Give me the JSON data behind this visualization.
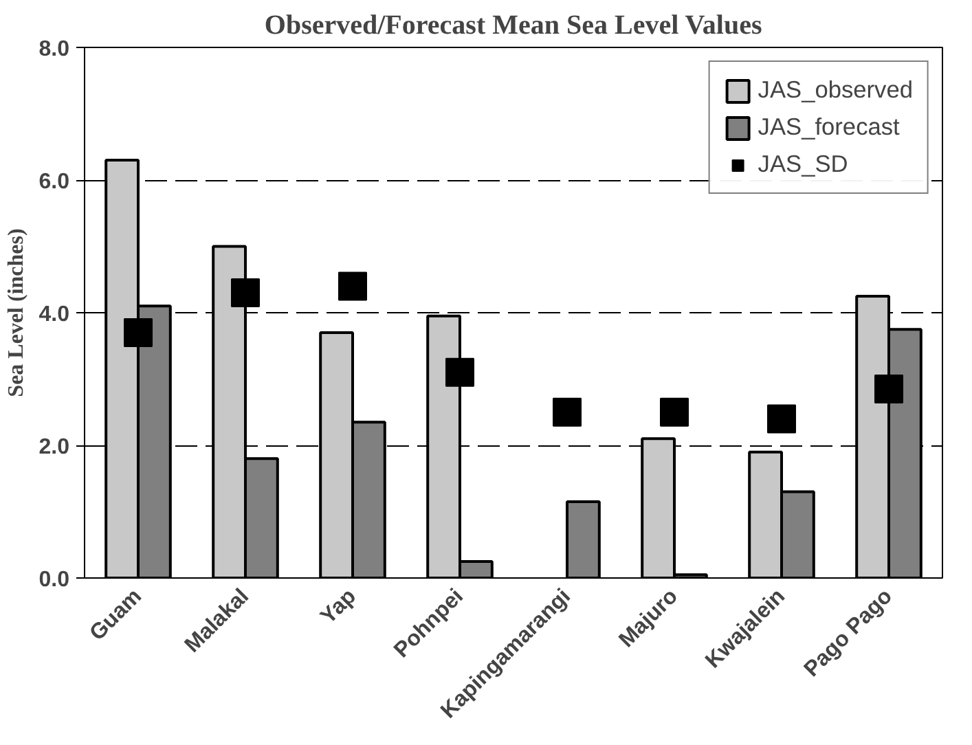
{
  "chart_data": {
    "type": "bar",
    "title": "Observed/Forecast Mean Sea Level Values",
    "ylabel": "Sea Level (inches)",
    "categories": [
      "Guam",
      "Malakal",
      "Yap",
      "Pohnpei",
      "Kapingamarangi",
      "Majuro",
      "Kwajalein",
      "Pago Pago"
    ],
    "series": [
      {
        "name": "JAS_observed",
        "color": "#c8c8c8",
        "values": [
          6.3,
          5.0,
          3.7,
          3.95,
          null,
          2.1,
          1.9,
          4.25
        ]
      },
      {
        "name": "JAS_forecast",
        "color": "#808080",
        "values": [
          4.1,
          1.8,
          2.35,
          0.25,
          1.15,
          0.05,
          1.3,
          3.75
        ]
      },
      {
        "name": "JAS_SD",
        "type": "scatter",
        "marker": "square",
        "color": "#000000",
        "values": [
          3.7,
          4.3,
          4.4,
          3.1,
          2.5,
          2.5,
          2.4,
          2.85
        ]
      }
    ],
    "ylim": [
      0,
      8
    ],
    "yticks": [
      {
        "value": 0,
        "label": "0.0"
      },
      {
        "value": 2,
        "label": "2.0"
      },
      {
        "value": 4,
        "label": "4.0"
      },
      {
        "value": 6,
        "label": "6.0"
      },
      {
        "value": 8,
        "label": "8.0"
      }
    ],
    "grid": "y",
    "legend": "top right"
  }
}
